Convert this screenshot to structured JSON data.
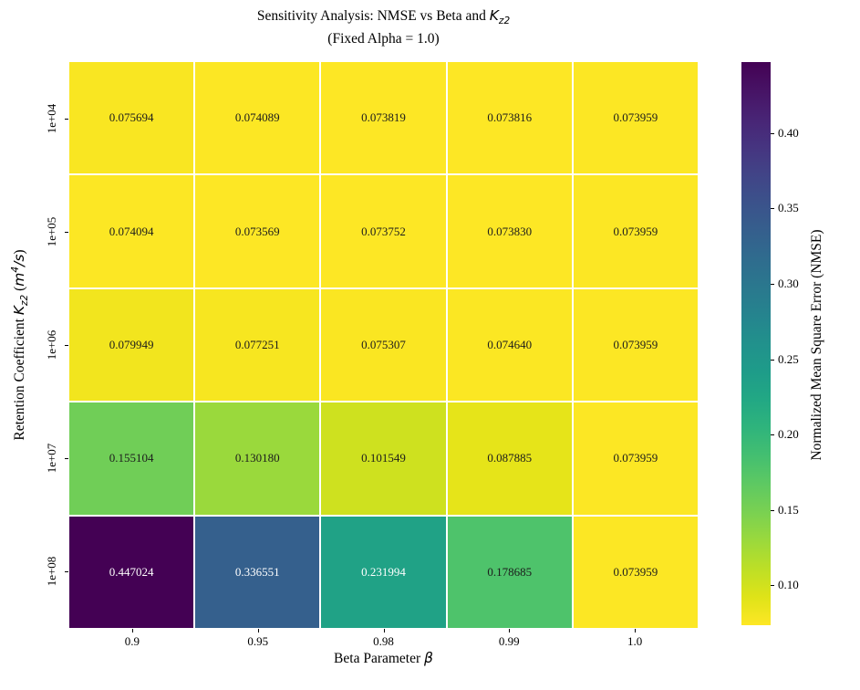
{
  "title": {
    "line1_prefix": "Sensitivity Analysis: NMSE vs Beta and ",
    "line1_var": "K",
    "line1_sub": "z2",
    "line2": "(Fixed Alpha = 1.0)"
  },
  "xlabel": {
    "prefix": "Beta Parameter ",
    "symbol": "β"
  },
  "ylabel": {
    "prefix": "Retention Coefficient ",
    "var": "K",
    "var_sub": "z2",
    "paren_open": " (",
    "unit_m": "m",
    "unit_sup": "4",
    "unit_slash_s": "/s",
    "paren_close": ")"
  },
  "colorbar": {
    "label": "Normalized Mean Square Error (NMSE)",
    "tick_labels": [
      "0.40",
      "0.35",
      "0.30",
      "0.25",
      "0.20",
      "0.15",
      "0.10"
    ],
    "tick_values": [
      0.4,
      0.35,
      0.3,
      0.25,
      0.2,
      0.15,
      0.1
    ],
    "top_color": "#440154",
    "bottom_color": "#fde725"
  },
  "chart_data": {
    "type": "heatmap",
    "title": "Sensitivity Analysis: NMSE vs Beta and K_z2 (Fixed Alpha = 1.0)",
    "xlabel": "Beta Parameter β",
    "ylabel": "Retention Coefficient K_z2 (m^4/s)",
    "colormap": "viridis_r",
    "vmin": 0.073569,
    "vmax": 0.447024,
    "x_categories": [
      "0.9",
      "0.95",
      "0.98",
      "0.99",
      "1.0"
    ],
    "y_categories": [
      "1e+04",
      "1e+05",
      "1e+06",
      "1e+07",
      "1e+08"
    ],
    "values": [
      [
        0.075694,
        0.074089,
        0.073819,
        0.073816,
        0.073959
      ],
      [
        0.074094,
        0.073569,
        0.073752,
        0.07383,
        0.073959
      ],
      [
        0.079949,
        0.077251,
        0.075307,
        0.07464,
        0.073959
      ],
      [
        0.155104,
        0.13018,
        0.101549,
        0.087885,
        0.073959
      ],
      [
        0.447024,
        0.336551,
        0.231994,
        0.178685,
        0.073959
      ]
    ],
    "value_labels": [
      [
        "0.075694",
        "0.074089",
        "0.073819",
        "0.073816",
        "0.073959"
      ],
      [
        "0.074094",
        "0.073569",
        "0.073752",
        "0.073830",
        "0.073959"
      ],
      [
        "0.079949",
        "0.077251",
        "0.075307",
        "0.074640",
        "0.073959"
      ],
      [
        "0.155104",
        "0.130180",
        "0.101549",
        "0.087885",
        "0.073959"
      ],
      [
        "0.447024",
        "0.336551",
        "0.231994",
        "0.178685",
        "0.073959"
      ]
    ],
    "cell_colors": [
      [
        "#f9e622",
        "#fce724",
        "#fde725",
        "#fde725",
        "#fce724"
      ],
      [
        "#fce724",
        "#fde725",
        "#fde725",
        "#fde725",
        "#fce724"
      ],
      [
        "#f2e51e",
        "#f7e620",
        "#fae622",
        "#fbe723",
        "#fce724"
      ],
      [
        "#70ce57",
        "#9ad93c",
        "#cee11f",
        "#e6e419",
        "#fce724"
      ],
      [
        "#440154",
        "#35608d",
        "#20a286",
        "#4ec36b",
        "#fce724"
      ]
    ],
    "cell_text_colors": [
      [
        "#1c1c1c",
        "#1c1c1c",
        "#1c1c1c",
        "#1c1c1c",
        "#1c1c1c"
      ],
      [
        "#1c1c1c",
        "#1c1c1c",
        "#1c1c1c",
        "#1c1c1c",
        "#1c1c1c"
      ],
      [
        "#1c1c1c",
        "#1c1c1c",
        "#1c1c1c",
        "#1c1c1c",
        "#1c1c1c"
      ],
      [
        "#1c1c1c",
        "#1c1c1c",
        "#1c1c1c",
        "#1c1c1c",
        "#1c1c1c"
      ],
      [
        "#ffffff",
        "#ffffff",
        "#ffffff",
        "#1c1c1c",
        "#1c1c1c"
      ]
    ]
  }
}
